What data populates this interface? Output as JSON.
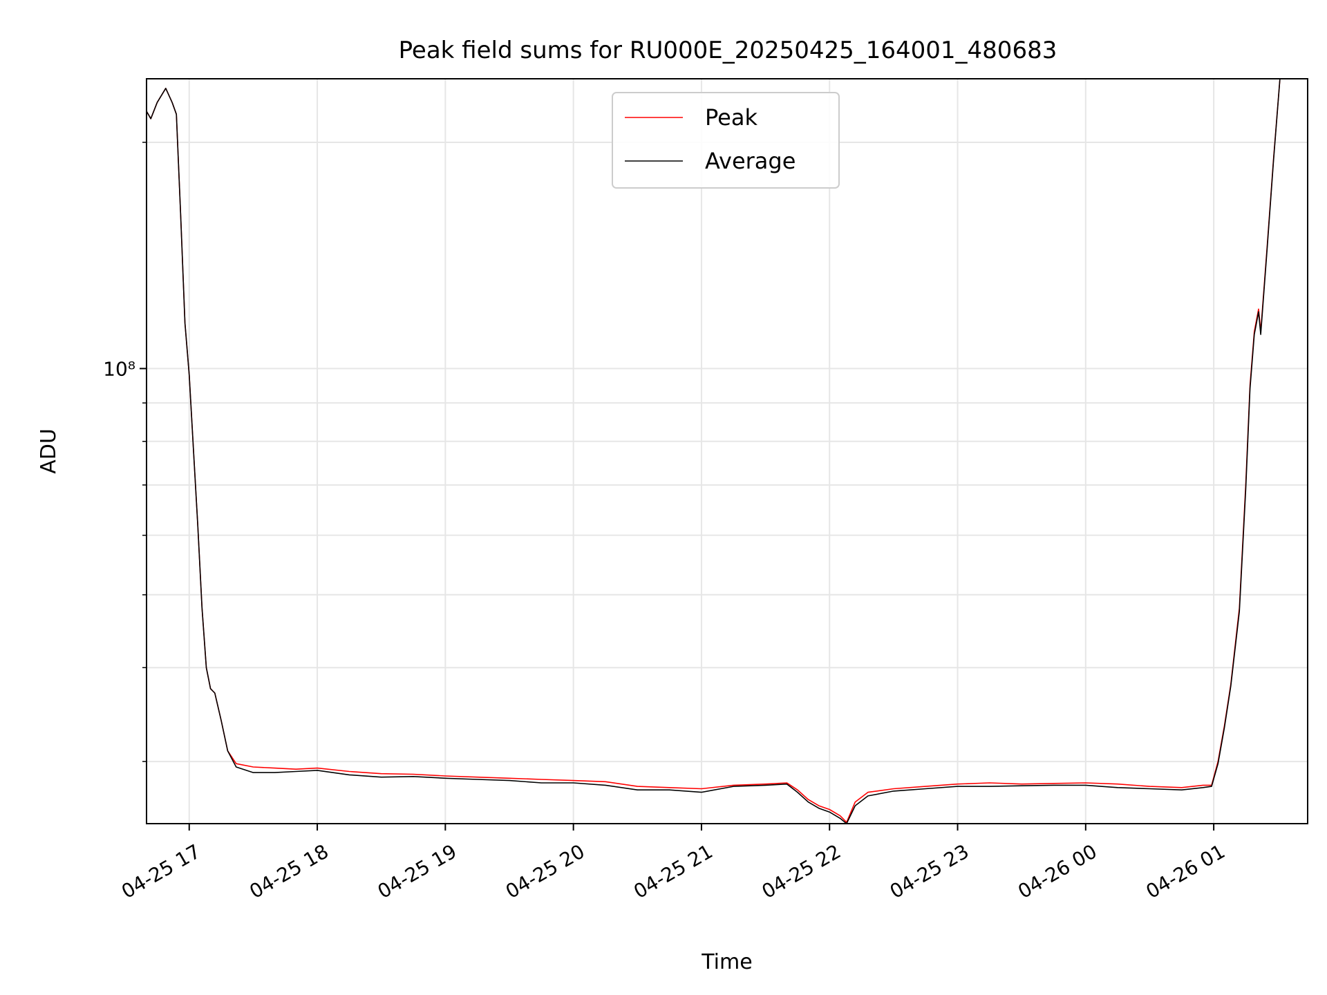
{
  "chart_data": {
    "type": "line",
    "title": "Peak field sums for RU000E_20250425_164001_480683",
    "xlabel": "Time",
    "ylabel": "ADU",
    "yscale": "log",
    "ylim": [
      24800000,
      243000000
    ],
    "xlim": [
      "2025-04-25 16:40",
      "2025-04-26 01:44"
    ],
    "x_ticks": [
      "04-25 17",
      "04-25 18",
      "04-25 19",
      "04-25 20",
      "04-25 21",
      "04-25 22",
      "04-25 23",
      "04-26 00",
      "04-26 01"
    ],
    "y_ticks": [
      {
        "value": 100000000,
        "label": "10⁸"
      }
    ],
    "grid": true,
    "legend": "upper center",
    "series": [
      {
        "name": "Peak",
        "color": "#ff0000",
        "points": [
          [
            "2025-04-25 16:40",
            220000000
          ],
          [
            "2025-04-25 16:42",
            215000000
          ],
          [
            "2025-04-25 16:45",
            226000000
          ],
          [
            "2025-04-25 16:49",
            236000000
          ],
          [
            "2025-04-25 16:52",
            226000000
          ],
          [
            "2025-04-25 16:54",
            218000000
          ],
          [
            "2025-04-25 16:56",
            160000000
          ],
          [
            "2025-04-25 16:58",
            115000000
          ],
          [
            "2025-04-25 17:00",
            98000000
          ],
          [
            "2025-04-25 17:02",
            78000000
          ],
          [
            "2025-04-25 17:04",
            62000000
          ],
          [
            "2025-04-25 17:06",
            48000000
          ],
          [
            "2025-04-25 17:08",
            40000000
          ],
          [
            "2025-04-25 17:10",
            37500000
          ],
          [
            "2025-04-25 17:12",
            37000000
          ],
          [
            "2025-04-25 17:15",
            34000000
          ],
          [
            "2025-04-25 17:18",
            31000000
          ],
          [
            "2025-04-25 17:22",
            29800000
          ],
          [
            "2025-04-25 17:30",
            29500000
          ],
          [
            "2025-04-25 17:40",
            29400000
          ],
          [
            "2025-04-25 17:50",
            29300000
          ],
          [
            "2025-04-25 18:00",
            29400000
          ],
          [
            "2025-04-25 18:15",
            29100000
          ],
          [
            "2025-04-25 18:30",
            28900000
          ],
          [
            "2025-04-25 18:45",
            28850000
          ],
          [
            "2025-04-25 19:00",
            28700000
          ],
          [
            "2025-04-25 19:15",
            28600000
          ],
          [
            "2025-04-25 19:30",
            28500000
          ],
          [
            "2025-04-25 19:45",
            28400000
          ],
          [
            "2025-04-25 20:00",
            28300000
          ],
          [
            "2025-04-25 20:15",
            28200000
          ],
          [
            "2025-04-25 20:30",
            27800000
          ],
          [
            "2025-04-25 20:45",
            27700000
          ],
          [
            "2025-04-25 21:00",
            27600000
          ],
          [
            "2025-04-25 21:15",
            27900000
          ],
          [
            "2025-04-25 21:30",
            28000000
          ],
          [
            "2025-04-25 21:40",
            28100000
          ],
          [
            "2025-04-25 21:45",
            27500000
          ],
          [
            "2025-04-25 21:50",
            26700000
          ],
          [
            "2025-04-25 21:55",
            26200000
          ],
          [
            "2025-04-25 22:00",
            25900000
          ],
          [
            "2025-04-25 22:05",
            25400000
          ],
          [
            "2025-04-25 22:08",
            24900000
          ],
          [
            "2025-04-25 22:12",
            26500000
          ],
          [
            "2025-04-25 22:18",
            27300000
          ],
          [
            "2025-04-25 22:30",
            27600000
          ],
          [
            "2025-04-25 22:45",
            27800000
          ],
          [
            "2025-04-25 23:00",
            28000000
          ],
          [
            "2025-04-25 23:15",
            28100000
          ],
          [
            "2025-04-25 23:30",
            28000000
          ],
          [
            "2025-04-25 23:45",
            28050000
          ],
          [
            "2025-04-26 00:00",
            28100000
          ],
          [
            "2025-04-26 00:15",
            28000000
          ],
          [
            "2025-04-26 00:30",
            27800000
          ],
          [
            "2025-04-26 00:45",
            27700000
          ],
          [
            "2025-04-26 00:55",
            27900000
          ],
          [
            "2025-04-26 00:59",
            27900000
          ],
          [
            "2025-04-26 01:02",
            30000000
          ],
          [
            "2025-04-26 01:05",
            33500000
          ],
          [
            "2025-04-26 01:08",
            38000000
          ],
          [
            "2025-04-26 01:12",
            48000000
          ],
          [
            "2025-04-26 01:15",
            70000000
          ],
          [
            "2025-04-26 01:17",
            95000000
          ],
          [
            "2025-04-26 01:19",
            112000000
          ],
          [
            "2025-04-26 01:21",
            120000000
          ],
          [
            "2025-04-26 01:22",
            112000000
          ],
          [
            "2025-04-26 01:25",
            145000000
          ],
          [
            "2025-04-26 01:28",
            190000000
          ],
          [
            "2025-04-26 01:31",
            243000000
          ]
        ]
      },
      {
        "name": "Average",
        "color": "#000000",
        "points": [
          [
            "2025-04-25 16:40",
            220000000
          ],
          [
            "2025-04-25 16:42",
            215000000
          ],
          [
            "2025-04-25 16:45",
            226000000
          ],
          [
            "2025-04-25 16:49",
            236000000
          ],
          [
            "2025-04-25 16:52",
            226000000
          ],
          [
            "2025-04-25 16:54",
            218000000
          ],
          [
            "2025-04-25 16:56",
            160000000
          ],
          [
            "2025-04-25 16:58",
            115000000
          ],
          [
            "2025-04-25 17:00",
            98000000
          ],
          [
            "2025-04-25 17:02",
            78000000
          ],
          [
            "2025-04-25 17:04",
            62000000
          ],
          [
            "2025-04-25 17:06",
            48000000
          ],
          [
            "2025-04-25 17:08",
            40000000
          ],
          [
            "2025-04-25 17:10",
            37500000
          ],
          [
            "2025-04-25 17:12",
            37000000
          ],
          [
            "2025-04-25 17:15",
            34000000
          ],
          [
            "2025-04-25 17:18",
            31000000
          ],
          [
            "2025-04-25 17:22",
            29500000
          ],
          [
            "2025-04-25 17:30",
            29000000
          ],
          [
            "2025-04-25 17:40",
            29000000
          ],
          [
            "2025-04-25 17:50",
            29100000
          ],
          [
            "2025-04-25 18:00",
            29200000
          ],
          [
            "2025-04-25 18:15",
            28800000
          ],
          [
            "2025-04-25 18:30",
            28600000
          ],
          [
            "2025-04-25 18:45",
            28650000
          ],
          [
            "2025-04-25 19:00",
            28500000
          ],
          [
            "2025-04-25 19:15",
            28400000
          ],
          [
            "2025-04-25 19:30",
            28300000
          ],
          [
            "2025-04-25 19:45",
            28100000
          ],
          [
            "2025-04-25 20:00",
            28100000
          ],
          [
            "2025-04-25 20:15",
            27900000
          ],
          [
            "2025-04-25 20:30",
            27500000
          ],
          [
            "2025-04-25 20:45",
            27500000
          ],
          [
            "2025-04-25 21:00",
            27300000
          ],
          [
            "2025-04-25 21:15",
            27800000
          ],
          [
            "2025-04-25 21:30",
            27900000
          ],
          [
            "2025-04-25 21:40",
            28000000
          ],
          [
            "2025-04-25 21:45",
            27300000
          ],
          [
            "2025-04-25 21:50",
            26500000
          ],
          [
            "2025-04-25 21:55",
            26000000
          ],
          [
            "2025-04-25 22:00",
            25700000
          ],
          [
            "2025-04-25 22:05",
            25200000
          ],
          [
            "2025-04-25 22:08",
            24800000
          ],
          [
            "2025-04-25 22:12",
            26200000
          ],
          [
            "2025-04-25 22:18",
            27000000
          ],
          [
            "2025-04-25 22:30",
            27400000
          ],
          [
            "2025-04-25 22:45",
            27600000
          ],
          [
            "2025-04-25 23:00",
            27800000
          ],
          [
            "2025-04-25 23:15",
            27800000
          ],
          [
            "2025-04-25 23:30",
            27850000
          ],
          [
            "2025-04-25 23:45",
            27900000
          ],
          [
            "2025-04-26 00:00",
            27900000
          ],
          [
            "2025-04-26 00:15",
            27700000
          ],
          [
            "2025-04-26 00:30",
            27600000
          ],
          [
            "2025-04-26 00:45",
            27500000
          ],
          [
            "2025-04-26 00:55",
            27700000
          ],
          [
            "2025-04-26 00:59",
            27800000
          ],
          [
            "2025-04-26 01:02",
            29800000
          ],
          [
            "2025-04-26 01:05",
            33300000
          ],
          [
            "2025-04-26 01:08",
            37800000
          ],
          [
            "2025-04-26 01:12",
            47500000
          ],
          [
            "2025-04-26 01:15",
            69000000
          ],
          [
            "2025-04-26 01:17",
            94000000
          ],
          [
            "2025-04-26 01:19",
            111000000
          ],
          [
            "2025-04-26 01:21",
            119000000
          ],
          [
            "2025-04-26 01:22",
            111000000
          ],
          [
            "2025-04-26 01:25",
            144000000
          ],
          [
            "2025-04-26 01:28",
            189000000
          ],
          [
            "2025-04-26 01:31",
            243000000
          ]
        ]
      }
    ]
  }
}
